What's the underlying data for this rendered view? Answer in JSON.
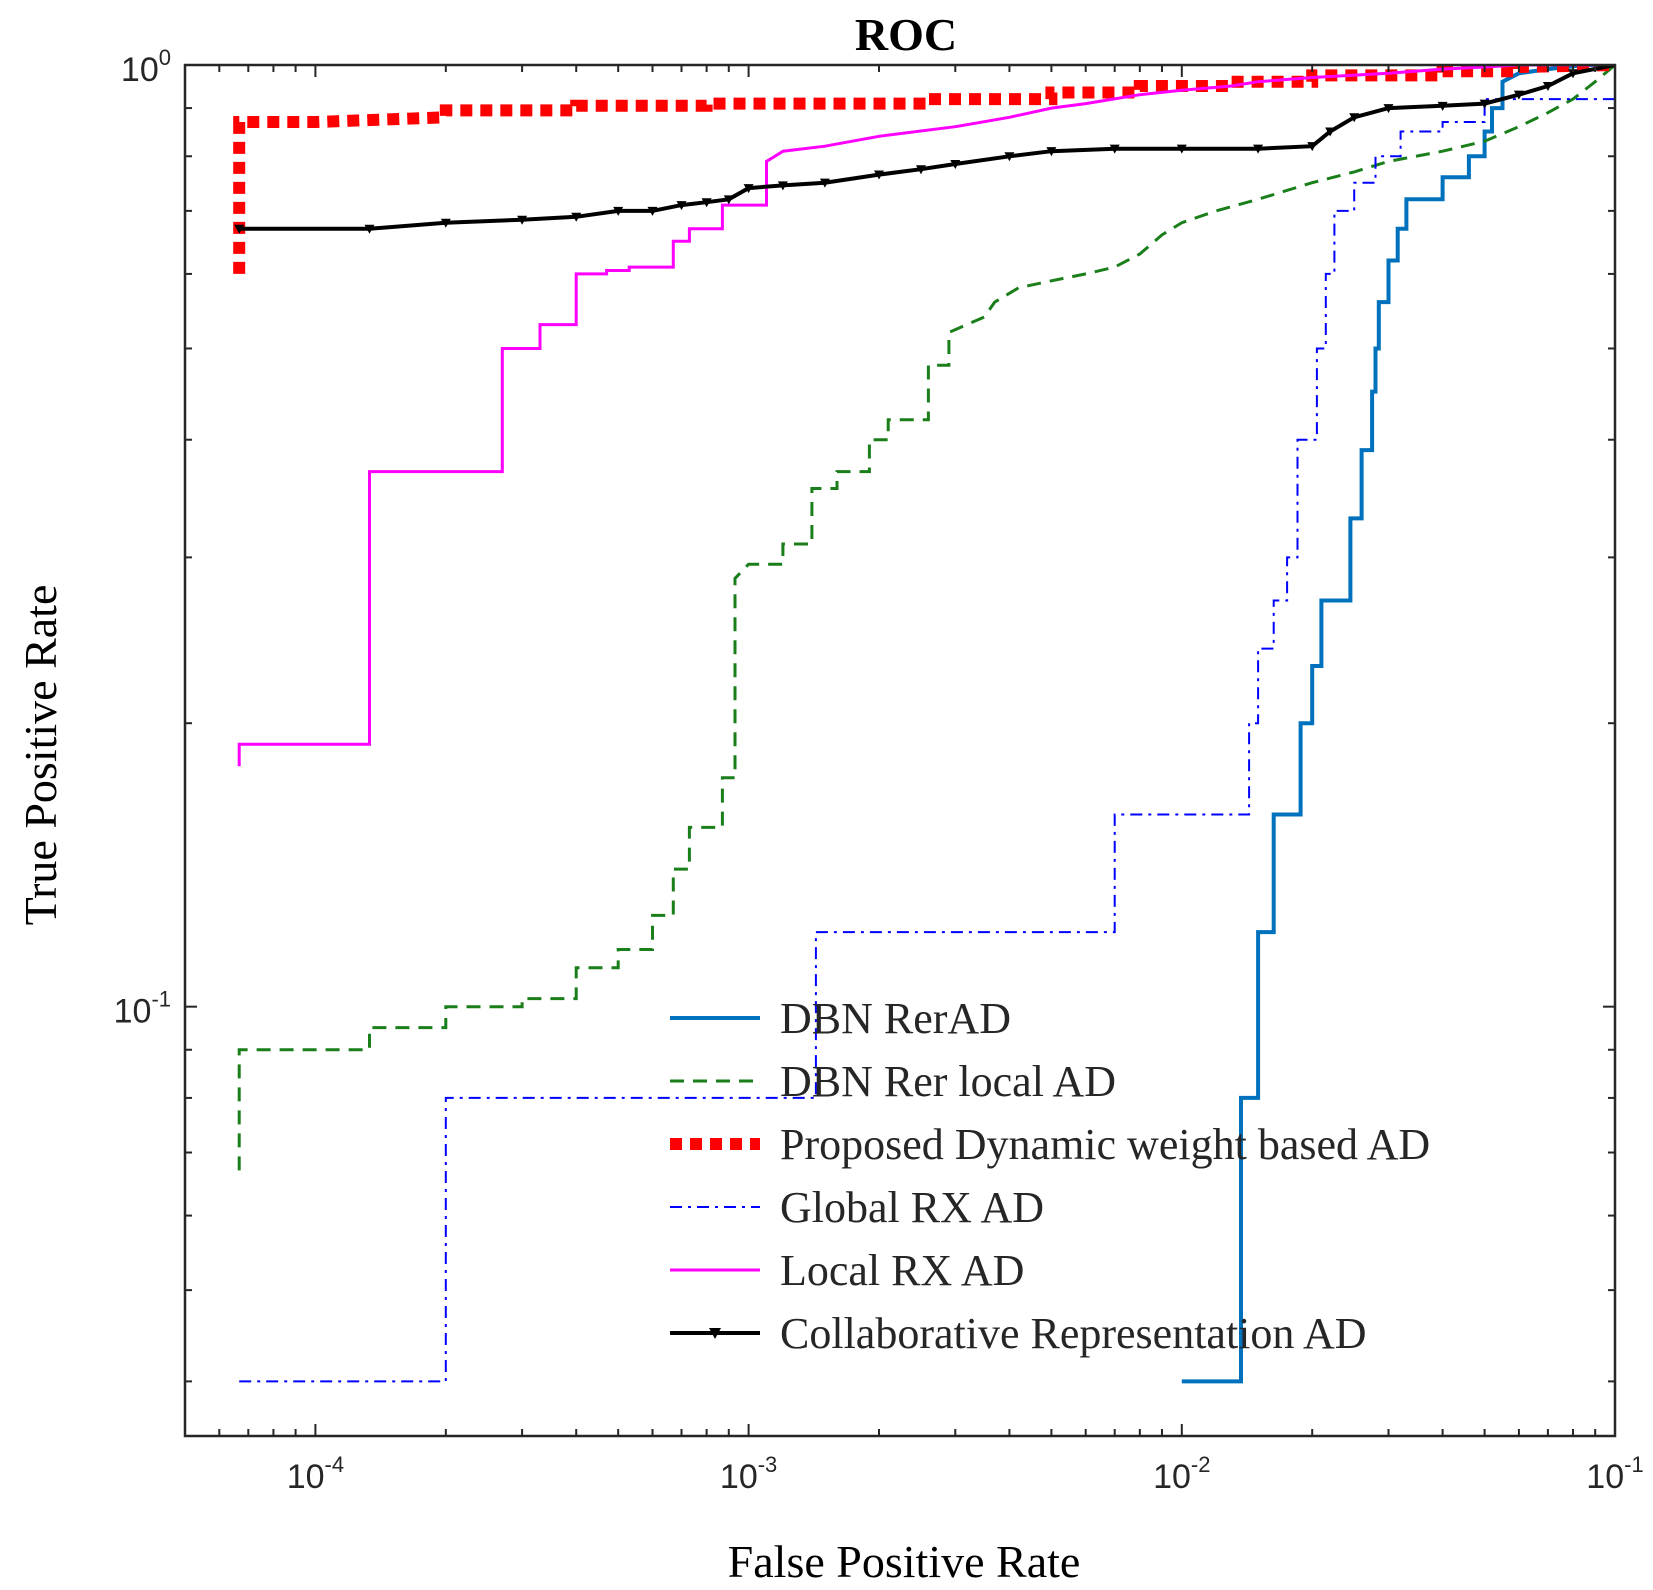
{
  "chart_data": {
    "type": "line",
    "title": "ROC",
    "xlabel": "False Positive Rate",
    "ylabel": "True Positive Rate",
    "xscale": "log",
    "yscale": "log",
    "xlim": [
      5e-05,
      0.1
    ],
    "ylim": [
      0.035,
      1.0
    ],
    "grid": false,
    "legend_position": "bottom-right",
    "x_ticks": [
      {
        "value": 0.0001,
        "base": "10",
        "exp": "-4"
      },
      {
        "value": 0.001,
        "base": "10",
        "exp": "-3"
      },
      {
        "value": 0.01,
        "base": "10",
        "exp": "-2"
      },
      {
        "value": 0.1,
        "base": "10",
        "exp": "-1"
      }
    ],
    "y_ticks": [
      {
        "value": 0.1,
        "base": "10",
        "exp": "-1"
      },
      {
        "value": 1.0,
        "base": "10",
        "exp": "0"
      }
    ],
    "series": [
      {
        "name": "DBN RerAD",
        "color": "#0072BD",
        "style": "solid",
        "width": 4,
        "marker": "",
        "x": [
          0.01,
          0.0137,
          0.0137,
          0.0137,
          0.015,
          0.015,
          0.0163,
          0.0163,
          0.0188,
          0.0188,
          0.02,
          0.02,
          0.021,
          0.021,
          0.0245,
          0.0245,
          0.026,
          0.026,
          0.0275,
          0.0275,
          0.028,
          0.028,
          0.0285,
          0.0285,
          0.03,
          0.03,
          0.0315,
          0.0315,
          0.033,
          0.033,
          0.04,
          0.04,
          0.046,
          0.046,
          0.05,
          0.05,
          0.052,
          0.052,
          0.055,
          0.055,
          0.06,
          0.07,
          0.085,
          0.1
        ],
        "y": [
          0.04,
          0.04,
          0.06,
          0.08,
          0.08,
          0.12,
          0.12,
          0.16,
          0.16,
          0.2,
          0.2,
          0.23,
          0.23,
          0.27,
          0.27,
          0.33,
          0.33,
          0.39,
          0.39,
          0.45,
          0.45,
          0.5,
          0.5,
          0.56,
          0.56,
          0.62,
          0.62,
          0.67,
          0.67,
          0.72,
          0.72,
          0.76,
          0.76,
          0.8,
          0.8,
          0.85,
          0.85,
          0.9,
          0.9,
          0.96,
          0.98,
          0.99,
          1.0,
          1.0
        ]
      },
      {
        "name": "DBN Rer local AD",
        "color": "#1A7F1A",
        "style": "dashed",
        "width": 3,
        "marker": "",
        "x": [
          6.67e-05,
          6.67e-05,
          0.0001333,
          0.0001333,
          0.0002,
          0.0002,
          0.0003,
          0.0003,
          0.0004,
          0.0004,
          0.0005,
          0.0005,
          0.0006,
          0.0006,
          0.00067,
          0.00067,
          0.00073,
          0.00073,
          0.00087,
          0.00087,
          0.00093,
          0.00093,
          0.001,
          0.0012,
          0.0012,
          0.0014,
          0.0014,
          0.0016,
          0.0016,
          0.0019,
          0.0019,
          0.0021,
          0.0021,
          0.0026,
          0.0026,
          0.0029,
          0.0029,
          0.0035,
          0.0037,
          0.0042,
          0.005,
          0.006,
          0.007,
          0.008,
          0.009,
          0.01,
          0.012,
          0.015,
          0.02,
          0.025,
          0.03,
          0.04,
          0.05,
          0.06,
          0.07,
          0.08,
          0.09,
          0.1
        ],
        "y": [
          0.067,
          0.09,
          0.09,
          0.095,
          0.095,
          0.1,
          0.1,
          0.102,
          0.102,
          0.11,
          0.11,
          0.115,
          0.115,
          0.125,
          0.125,
          0.14,
          0.14,
          0.155,
          0.155,
          0.175,
          0.175,
          0.285,
          0.295,
          0.295,
          0.31,
          0.31,
          0.355,
          0.355,
          0.37,
          0.37,
          0.4,
          0.4,
          0.42,
          0.42,
          0.48,
          0.48,
          0.52,
          0.54,
          0.56,
          0.58,
          0.59,
          0.6,
          0.61,
          0.63,
          0.66,
          0.68,
          0.7,
          0.72,
          0.75,
          0.77,
          0.79,
          0.81,
          0.83,
          0.86,
          0.89,
          0.92,
          0.96,
          1.0
        ]
      },
      {
        "name": "Proposed Dynamic weight based AD",
        "color": "#FF0000",
        "style": "dotted",
        "width": 12,
        "marker": "",
        "x": [
          6.67e-05,
          6.67e-05,
          6.67e-05,
          0.0001,
          0.0002,
          0.0002,
          0.0004,
          0.0004,
          0.0008,
          0.0008,
          0.0026,
          0.0026,
          0.005,
          0.005,
          0.008,
          0.008,
          0.013,
          0.013,
          0.02,
          0.02,
          0.04,
          0.04,
          0.06,
          0.06,
          0.1
        ],
        "y": [
          0.6,
          0.8,
          0.87,
          0.87,
          0.88,
          0.895,
          0.895,
          0.905,
          0.905,
          0.91,
          0.91,
          0.92,
          0.92,
          0.935,
          0.935,
          0.95,
          0.95,
          0.96,
          0.96,
          0.975,
          0.975,
          0.985,
          0.985,
          0.995,
          1.0
        ]
      },
      {
        "name": "Global RX AD",
        "color": "#0000FF",
        "style": "dashdot",
        "width": 2,
        "marker": "",
        "x": [
          6.67e-05,
          0.0002,
          0.0002,
          0.00143,
          0.00143,
          0.007,
          0.007,
          0.0143,
          0.0143,
          0.015,
          0.015,
          0.0163,
          0.0163,
          0.0175,
          0.0175,
          0.0185,
          0.0185,
          0.0205,
          0.0205,
          0.0215,
          0.0215,
          0.0225,
          0.0225,
          0.025,
          0.025,
          0.028,
          0.028,
          0.032,
          0.032,
          0.04,
          0.04,
          0.05,
          0.05,
          0.1
        ],
        "y": [
          0.04,
          0.04,
          0.08,
          0.08,
          0.12,
          0.12,
          0.16,
          0.16,
          0.2,
          0.2,
          0.24,
          0.24,
          0.27,
          0.27,
          0.3,
          0.3,
          0.4,
          0.4,
          0.5,
          0.5,
          0.6,
          0.6,
          0.7,
          0.7,
          0.75,
          0.75,
          0.8,
          0.8,
          0.85,
          0.85,
          0.87,
          0.87,
          0.92,
          0.92
        ]
      },
      {
        "name": "Local RX AD",
        "color": "#FF00FF",
        "style": "solid",
        "width": 3,
        "marker": "",
        "x": [
          6.67e-05,
          6.67e-05,
          0.0001333,
          0.0001333,
          0.00027,
          0.00027,
          0.00033,
          0.00033,
          0.0004,
          0.0004,
          0.00047,
          0.00047,
          0.00053,
          0.00053,
          0.00067,
          0.00067,
          0.00073,
          0.00073,
          0.00087,
          0.00087,
          0.0011,
          0.0011,
          0.00115,
          0.0012,
          0.0015,
          0.002,
          0.003,
          0.004,
          0.005,
          0.006,
          0.008,
          0.01,
          0.013,
          0.015,
          0.02,
          0.03,
          0.04,
          0.05,
          0.06,
          0.1
        ],
        "y": [
          0.18,
          0.19,
          0.19,
          0.37,
          0.37,
          0.5,
          0.5,
          0.53,
          0.53,
          0.6,
          0.6,
          0.605,
          0.605,
          0.61,
          0.61,
          0.65,
          0.65,
          0.67,
          0.67,
          0.71,
          0.71,
          0.79,
          0.8,
          0.81,
          0.82,
          0.84,
          0.86,
          0.88,
          0.9,
          0.91,
          0.93,
          0.94,
          0.95,
          0.96,
          0.97,
          0.98,
          0.99,
          0.995,
          1.0,
          1.0
        ]
      },
      {
        "name": "Collaborative Representation AD",
        "color": "#000000",
        "style": "solid",
        "width": 4,
        "marker": "triangle-down",
        "x": [
          6.67e-05,
          0.0001333,
          0.0002,
          0.0003,
          0.0004,
          0.0005,
          0.0006,
          0.0007,
          0.0008,
          0.0009,
          0.001,
          0.0012,
          0.0015,
          0.002,
          0.0025,
          0.003,
          0.004,
          0.005,
          0.007,
          0.01,
          0.015,
          0.02,
          0.022,
          0.025,
          0.03,
          0.04,
          0.05,
          0.06,
          0.07,
          0.08,
          0.1
        ],
        "y": [
          0.67,
          0.67,
          0.68,
          0.685,
          0.69,
          0.7,
          0.7,
          0.71,
          0.715,
          0.72,
          0.74,
          0.745,
          0.75,
          0.765,
          0.775,
          0.785,
          0.8,
          0.81,
          0.815,
          0.815,
          0.815,
          0.82,
          0.85,
          0.88,
          0.9,
          0.905,
          0.91,
          0.93,
          0.95,
          0.98,
          1.0
        ]
      }
    ]
  }
}
